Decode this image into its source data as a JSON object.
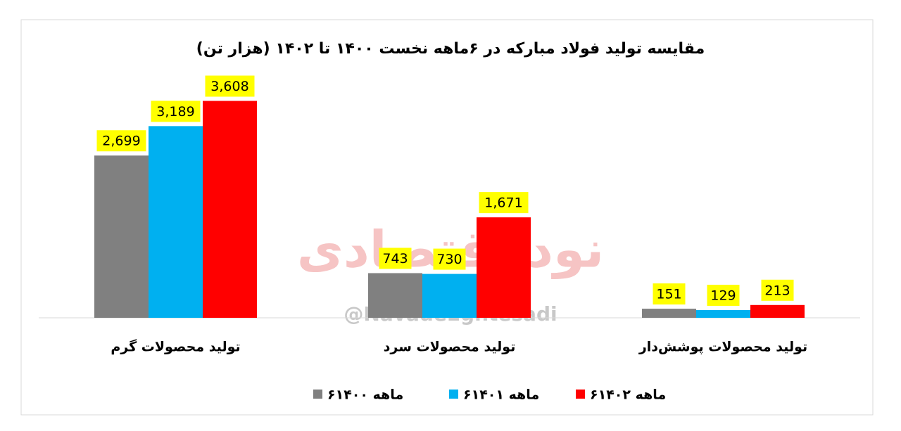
{
  "chart_data": {
    "type": "bar",
    "title": "مقایسه تولید فولاد مبارکه در ۶ماهه نخست ۱۴۰۰ تا ۱۴۰۲ (هزار تن)",
    "categories": [
      "تولید محصولات گرم",
      "تولید محصولات سرد",
      "تولید محصولات پوشش‌دار"
    ],
    "series": [
      {
        "name": "۶ماهه ۱۴۰۰",
        "color": "#808080",
        "values": [
          2699,
          743,
          151
        ],
        "value_labels": [
          "2,699",
          "743",
          "151"
        ]
      },
      {
        "name": "۶ماهه ۱۴۰۱",
        "color": "#00b0f0",
        "values": [
          3189,
          730,
          129
        ],
        "value_labels": [
          "3,189",
          "730",
          "129"
        ]
      },
      {
        "name": "۶ماهه ۱۴۰۲",
        "color": "#ff0000",
        "values": [
          3608,
          1671,
          213
        ],
        "value_labels": [
          "3,608",
          "1,671",
          "213"
        ]
      }
    ],
    "ylim": [
      0,
      4000
    ],
    "watermark": [
      "نود اقتصادی",
      "@NavadeEghtesadi"
    ]
  }
}
